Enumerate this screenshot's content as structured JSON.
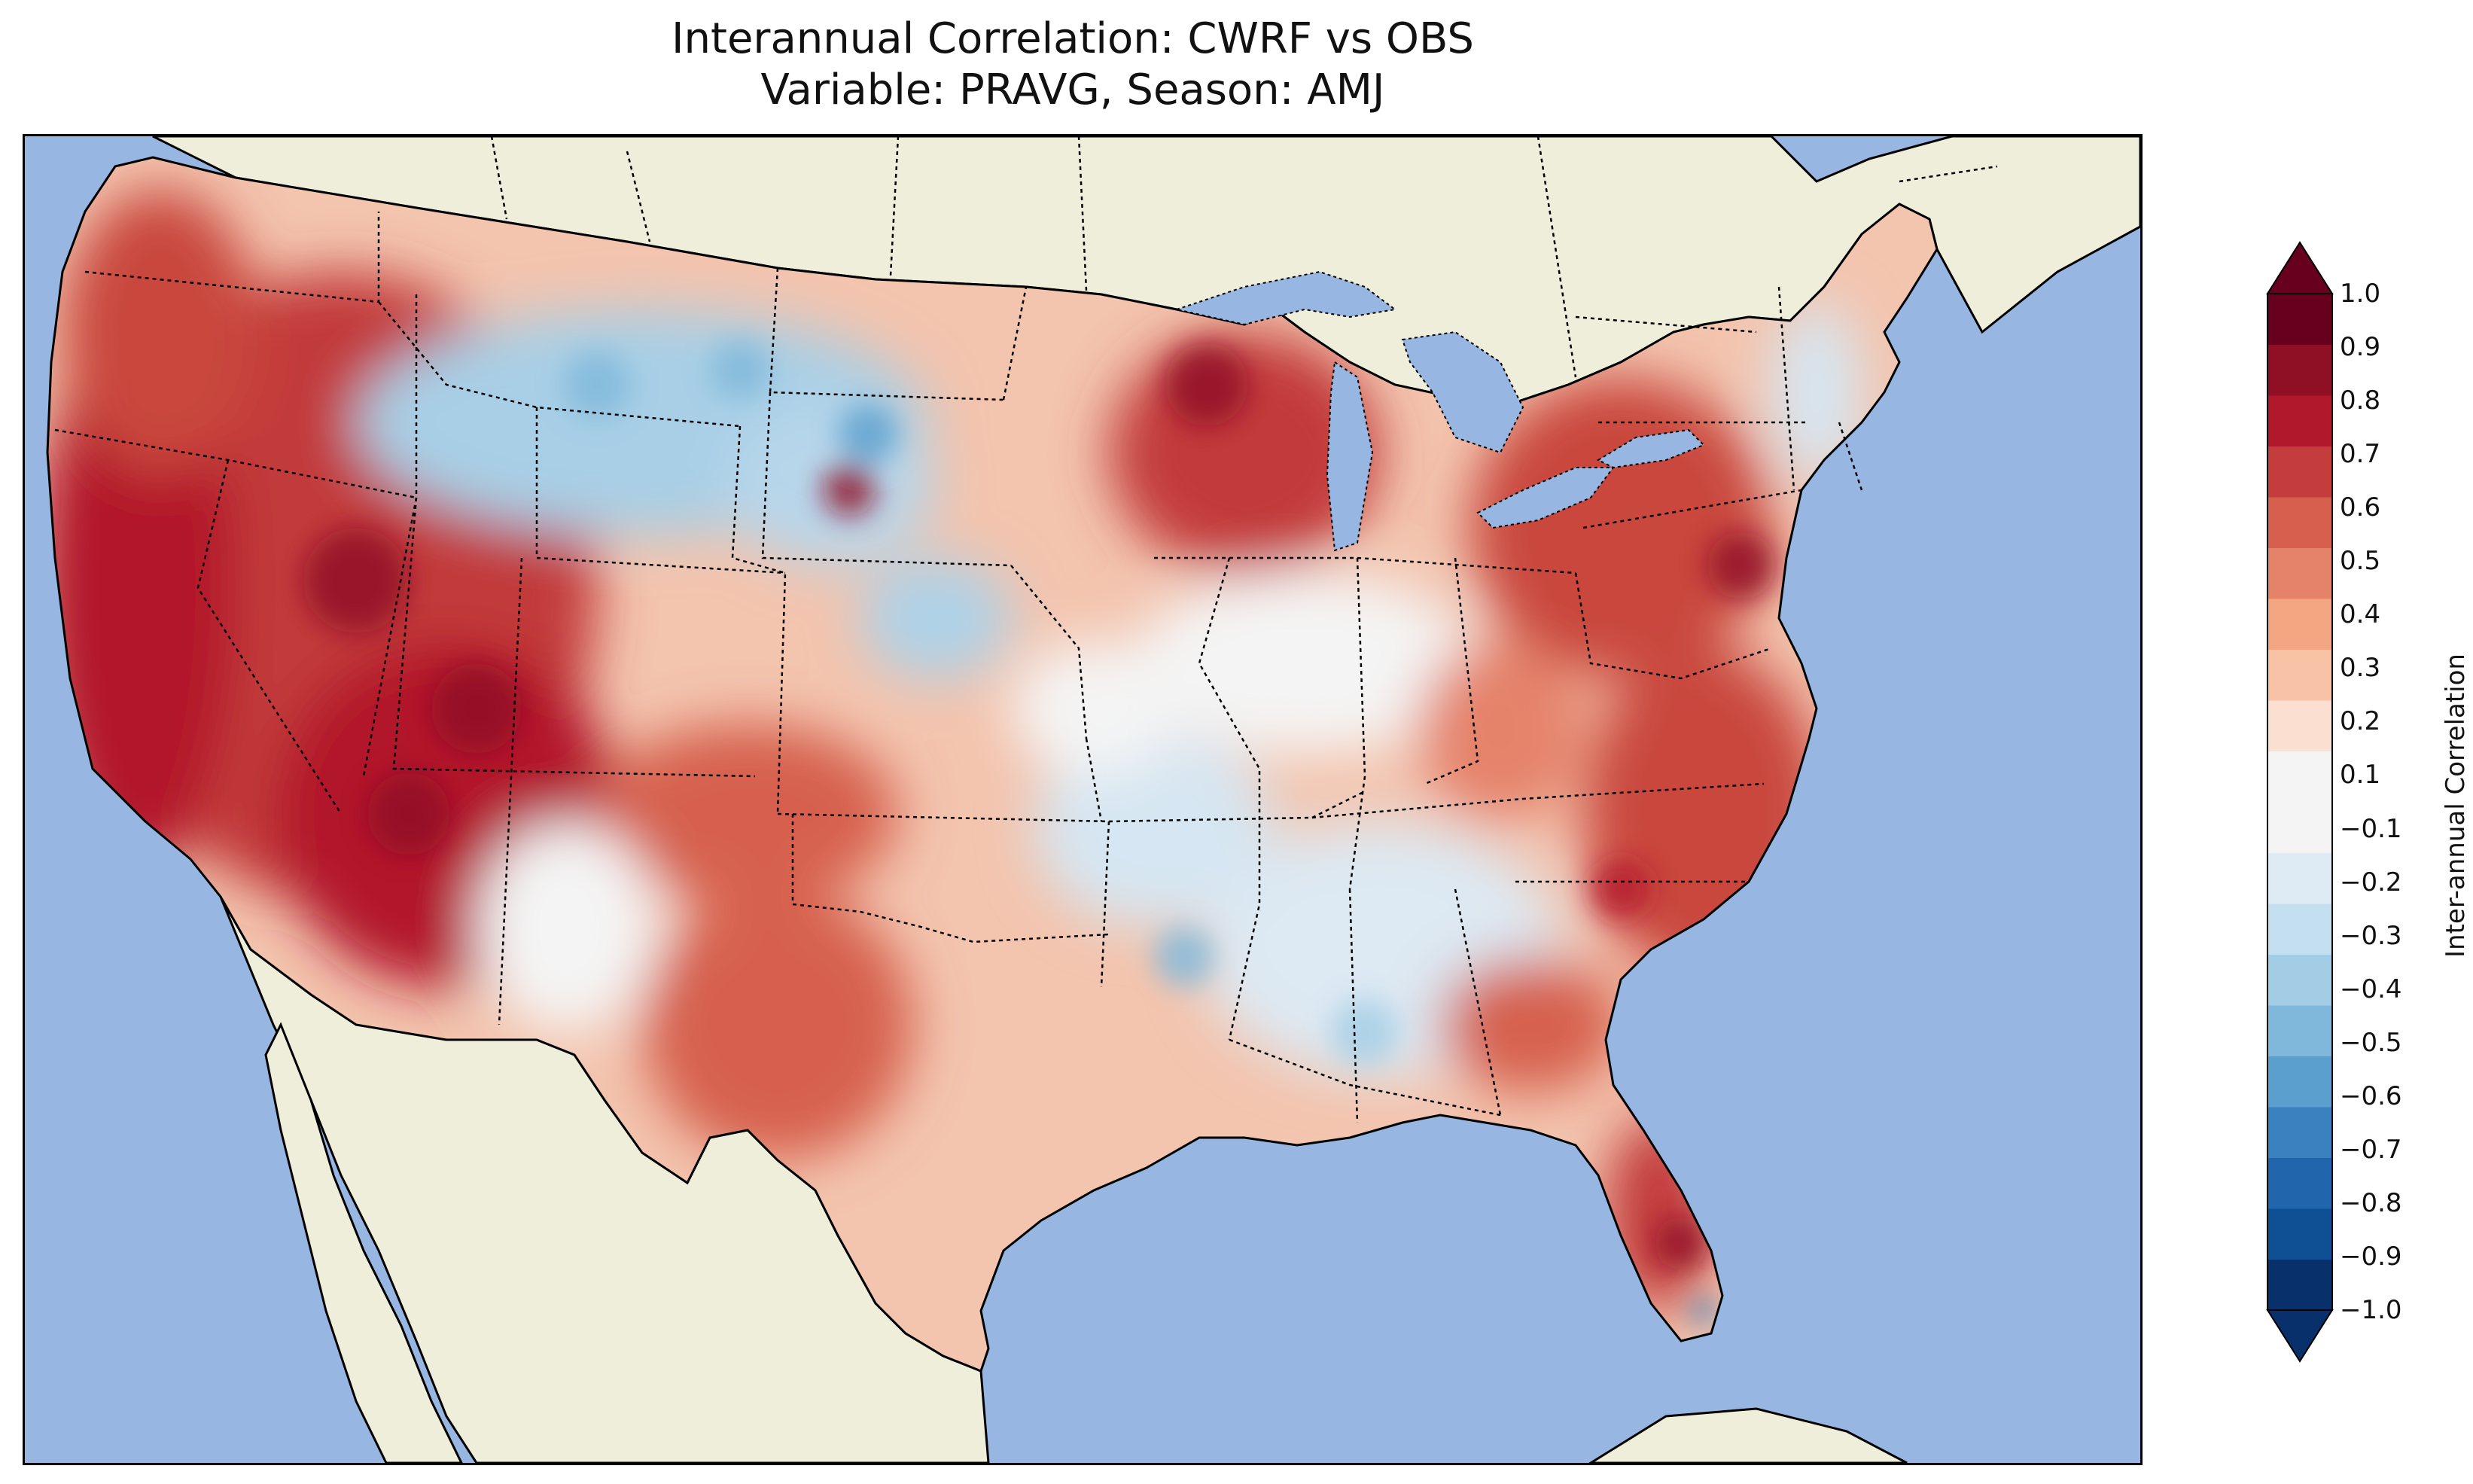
{
  "title_line1": "Interannual Correlation: CWRF vs OBS",
  "title_line2": "Variable: PRAVG, Season: AMJ",
  "colorbar": {
    "label": "Inter-annual Correlation",
    "ticks": [
      "1.0",
      "0.9",
      "0.8",
      "0.7",
      "0.6",
      "0.5",
      "0.4",
      "0.3",
      "0.2",
      "0.1",
      "−0.1",
      "−0.2",
      "−0.3",
      "−0.4",
      "−0.5",
      "−0.6",
      "−0.7",
      "−0.8",
      "−0.9",
      "−1.0"
    ],
    "range": [
      -1.0,
      1.0
    ],
    "extend": "both",
    "colors": [
      "#08306b",
      "#0f4f94",
      "#2166ac",
      "#3a82bf",
      "#5a9fcd",
      "#7fb8da",
      "#a3cde5",
      "#c4dff0",
      "#deebf5",
      "#f4f4f4",
      "#f4f4f4",
      "#fbe0d2",
      "#f8c2a6",
      "#f4a582",
      "#e5826a",
      "#d6604d",
      "#c43c3c",
      "#b2182b",
      "#8f0f25",
      "#67001f"
    ]
  },
  "map": {
    "ocean_color": "#97b6e1",
    "land_color": "#efeedb",
    "lake_color": "#97b6e1"
  }
}
